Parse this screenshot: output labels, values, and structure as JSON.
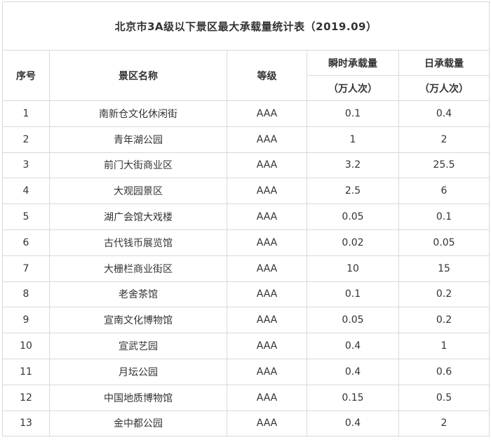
{
  "title": "北京市3A级以下景区最大承载量统计表（2019.09）",
  "table": {
    "columns": {
      "index": "序号",
      "name": "景区名称",
      "grade": "等级",
      "instant": "瞬时承载量",
      "instant_unit": "（万人次）",
      "daily": "日承载量",
      "daily_unit": "（万人次）"
    },
    "rows": [
      {
        "index": "1",
        "name": "南新仓文化休闲街",
        "grade": "AAA",
        "instant": "0.1",
        "daily": "0.4"
      },
      {
        "index": "2",
        "name": "青年湖公园",
        "grade": "AAA",
        "instant": "1",
        "daily": "2"
      },
      {
        "index": "3",
        "name": "前门大街商业区",
        "grade": "AAA",
        "instant": "3.2",
        "daily": "25.5"
      },
      {
        "index": "4",
        "name": "大观园景区",
        "grade": "AAA",
        "instant": "2.5",
        "daily": "6"
      },
      {
        "index": "5",
        "name": "湖广会馆大戏楼",
        "grade": "AAA",
        "instant": "0.05",
        "daily": "0.1"
      },
      {
        "index": "6",
        "name": "古代钱币展览馆",
        "grade": "AAA",
        "instant": "0.02",
        "daily": "0.05"
      },
      {
        "index": "7",
        "name": "大栅栏商业街区",
        "grade": "AAA",
        "instant": "10",
        "daily": "15"
      },
      {
        "index": "8",
        "name": "老舍茶馆",
        "grade": "AAA",
        "instant": "0.1",
        "daily": "0.2"
      },
      {
        "index": "9",
        "name": "宣南文化博物馆",
        "grade": "AAA",
        "instant": "0.05",
        "daily": "0.2"
      },
      {
        "index": "10",
        "name": "宣武艺园",
        "grade": "AAA",
        "instant": "0.4",
        "daily": "1"
      },
      {
        "index": "11",
        "name": "月坛公园",
        "grade": "AAA",
        "instant": "0.4",
        "daily": "0.6"
      },
      {
        "index": "12",
        "name": "中国地质博物馆",
        "grade": "AAA",
        "instant": "0.15",
        "daily": "0.5"
      },
      {
        "index": "13",
        "name": "金中都公园",
        "grade": "AAA",
        "instant": "0.4",
        "daily": "2"
      }
    ]
  },
  "colors": {
    "border": "#d9d9d9",
    "text": "#333333",
    "background": "#ffffff"
  }
}
